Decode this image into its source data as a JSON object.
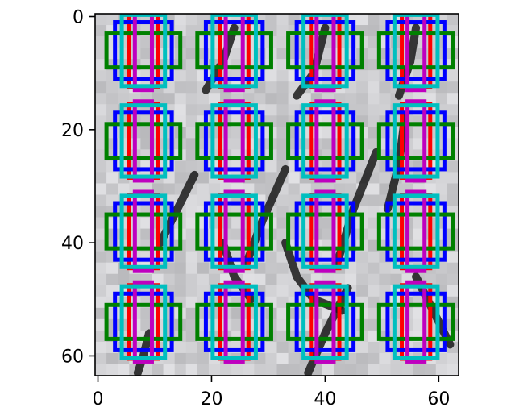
{
  "chart_data": {
    "type": "heatmap",
    "title": "",
    "xlabel": "",
    "ylabel": "",
    "xlim": [
      -0.5,
      63.5
    ],
    "ylim": [
      63.5,
      -0.5
    ],
    "x_ticks": [
      0,
      20,
      40,
      60
    ],
    "y_ticks": [
      0,
      20,
      40,
      60
    ],
    "x_tick_labels": [
      "0",
      "20",
      "40",
      "60"
    ],
    "y_tick_labels": [
      "0",
      "20",
      "40",
      "60"
    ],
    "grid": false,
    "legend": "none",
    "image": {
      "description_colors": {
        "background": "#cfcfcf",
        "stroke": "#1a1a1a"
      }
    },
    "overlay_grid": {
      "centers_x": [
        8,
        24,
        40,
        56
      ],
      "centers_y": [
        6,
        22,
        38,
        54
      ]
    },
    "box_sets": [
      {
        "color": "#ff0000",
        "half_width": 2.5,
        "half_height": 6.5
      },
      {
        "color": "#0000ff",
        "half_width": 5.0,
        "half_height": 5.0
      },
      {
        "color": "#008000",
        "half_width": 6.5,
        "half_height": 3.0
      },
      {
        "color": "#bf00bf",
        "half_width": 1.5,
        "half_height": 7.0
      },
      {
        "color": "#00bfbf",
        "half_width": 3.8,
        "half_height": 6.3
      }
    ]
  }
}
